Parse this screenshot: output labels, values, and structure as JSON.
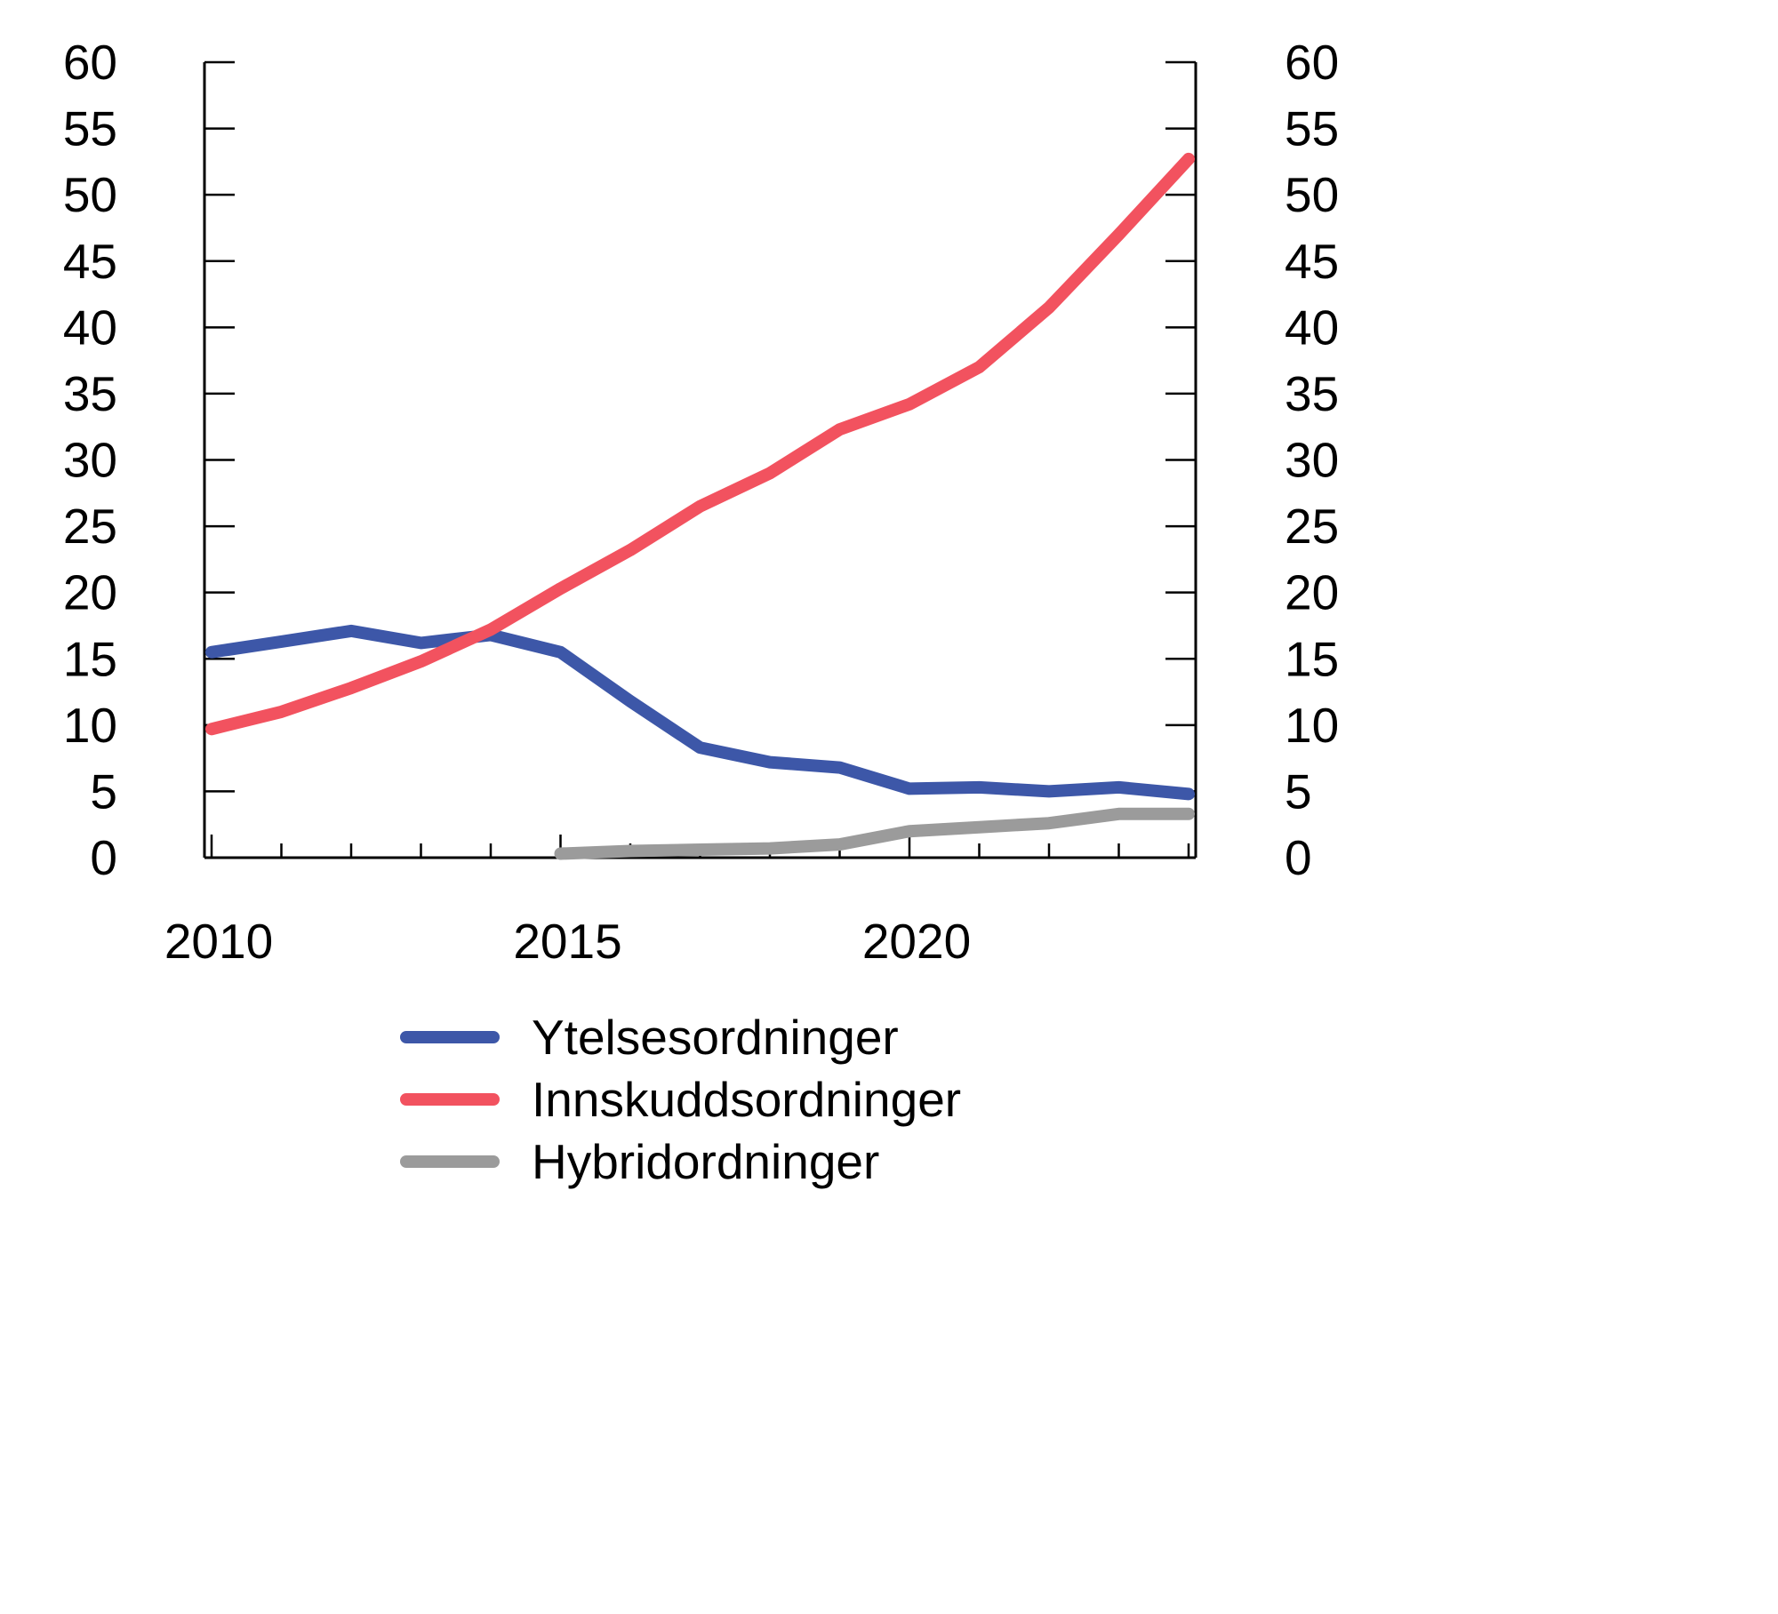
{
  "chart_data": {
    "type": "line",
    "title": "",
    "xlabel": "",
    "ylabel": "",
    "x": [
      2010,
      2011,
      2012,
      2013,
      2014,
      2015,
      2016,
      2017,
      2018,
      2019,
      2020,
      2021,
      2022,
      2023,
      2024
    ],
    "series": [
      {
        "name": "Ytelsesordninger",
        "color": "#3d57a8",
        "values": [
          15.5,
          16.3,
          17.1,
          16.2,
          16.8,
          15.5,
          11.8,
          8.3,
          7.2,
          6.8,
          5.2,
          5.3,
          5.0,
          5.3,
          4.8
        ]
      },
      {
        "name": "Innskuddsordninger",
        "color": "#f2525f",
        "values": [
          9.7,
          11.0,
          12.8,
          14.8,
          17.2,
          20.3,
          23.2,
          26.5,
          29.0,
          32.3,
          34.2,
          37.0,
          41.5,
          47.0,
          52.7
        ]
      },
      {
        "name": "Hybridordninger",
        "color": "#9b9b9b",
        "values": [
          null,
          null,
          null,
          null,
          null,
          0.3,
          0.5,
          0.6,
          0.7,
          1.0,
          2.0,
          2.3,
          2.6,
          3.3,
          3.3
        ]
      }
    ],
    "yticks": [
      0,
      5,
      10,
      15,
      20,
      25,
      30,
      35,
      40,
      45,
      50,
      55,
      60
    ],
    "xticks": [
      2010,
      2015,
      2020
    ],
    "ylim": [
      0,
      60
    ],
    "xlim": [
      2010,
      2024
    ],
    "grid": false,
    "dual_y_axis": true,
    "legend_position": "bottom"
  },
  "legend": {
    "items": [
      {
        "label": "Ytelsesordninger"
      },
      {
        "label": "Innskuddsordninger"
      },
      {
        "label": "Hybridordninger"
      }
    ]
  },
  "colors": {
    "axis": "#000000",
    "background": "#ffffff",
    "series_blue": "#3d57a8",
    "series_red": "#f2525f",
    "series_gray": "#9b9b9b"
  }
}
